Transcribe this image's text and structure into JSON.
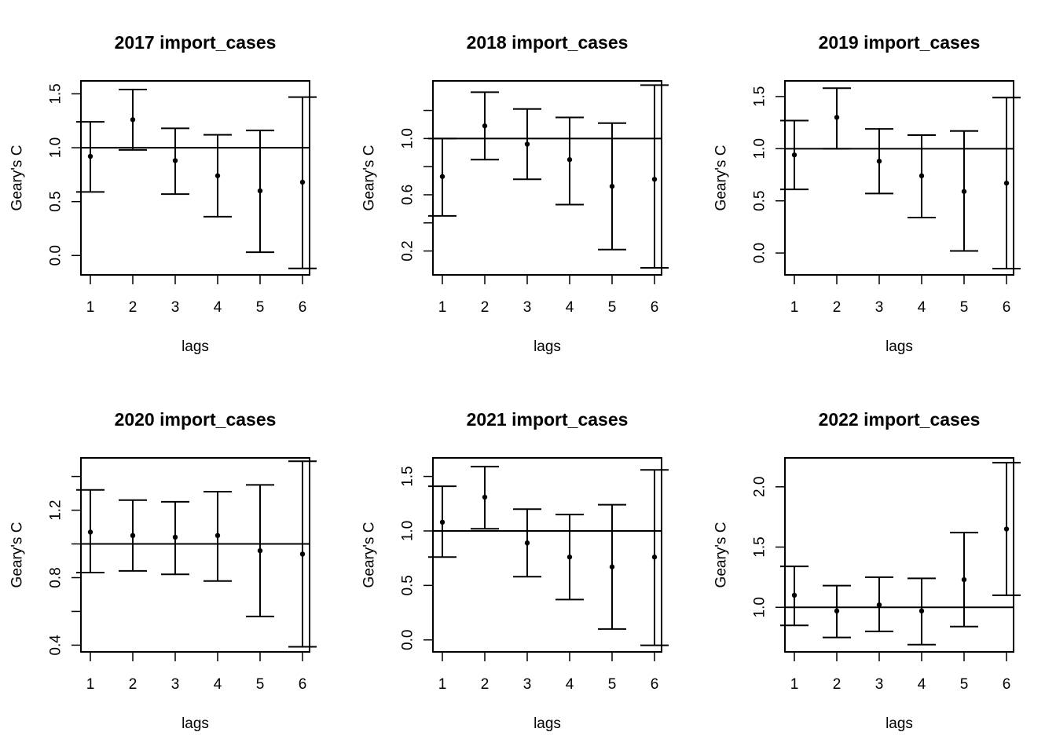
{
  "chart_data": [
    {
      "type": "errorbar",
      "title": "2017 import_cases",
      "xlabel": "lags",
      "ylabel": "Geary's C",
      "x": [
        1,
        2,
        3,
        4,
        5,
        6
      ],
      "y": [
        0.92,
        1.26,
        0.88,
        0.74,
        0.6,
        0.68
      ],
      "lower": [
        0.59,
        0.98,
        0.57,
        0.36,
        0.03,
        -0.12
      ],
      "upper": [
        1.24,
        1.54,
        1.18,
        1.12,
        1.16,
        1.47
      ],
      "reference_line": 1.0,
      "yticks": [
        0.0,
        0.5,
        1.0,
        1.5
      ],
      "ytick_labels": [
        "0.0",
        "0.5",
        "1.0",
        "1.5"
      ],
      "xticks": [
        "1",
        "2",
        "3",
        "4",
        "5",
        "6"
      ],
      "ylim": [
        -0.18,
        1.62
      ]
    },
    {
      "type": "errorbar",
      "title": "2018 import_cases",
      "xlabel": "lags",
      "ylabel": "Geary's C",
      "x": [
        1,
        2,
        3,
        4,
        5,
        6
      ],
      "y": [
        0.73,
        1.09,
        0.96,
        0.85,
        0.66,
        0.71
      ],
      "lower": [
        0.45,
        0.85,
        0.71,
        0.53,
        0.21,
        0.08
      ],
      "upper": [
        1.0,
        1.33,
        1.21,
        1.15,
        1.11,
        1.38
      ],
      "reference_line": 1.0,
      "yticks": [
        0.2,
        0.4,
        0.6,
        0.8,
        1.0,
        1.2
      ],
      "ytick_labels": [
        "0.2",
        "",
        "0.6",
        "",
        "1.0",
        ""
      ],
      "xticks": [
        "1",
        "2",
        "3",
        "4",
        "5",
        "6"
      ],
      "ylim": [
        0.03,
        1.41
      ]
    },
    {
      "type": "errorbar",
      "title": "2019 import_cases",
      "xlabel": "lags",
      "ylabel": "Geary's C",
      "x": [
        1,
        2,
        3,
        4,
        5,
        6
      ],
      "y": [
        0.94,
        1.3,
        0.88,
        0.74,
        0.59,
        0.67
      ],
      "lower": [
        0.61,
        1.0,
        0.57,
        0.34,
        0.02,
        -0.15
      ],
      "upper": [
        1.27,
        1.58,
        1.19,
        1.13,
        1.17,
        1.49
      ],
      "reference_line": 1.0,
      "yticks": [
        0.0,
        0.5,
        1.0,
        1.5
      ],
      "ytick_labels": [
        "0.0",
        "0.5",
        "1.0",
        "1.5"
      ],
      "xticks": [
        "1",
        "2",
        "3",
        "4",
        "5",
        "6"
      ],
      "ylim": [
        -0.21,
        1.65
      ]
    },
    {
      "type": "errorbar",
      "title": "2020 import_cases",
      "xlabel": "lags",
      "ylabel": "Geary's C",
      "x": [
        1,
        2,
        3,
        4,
        5,
        6
      ],
      "y": [
        1.07,
        1.05,
        1.04,
        1.05,
        0.96,
        0.94
      ],
      "lower": [
        0.83,
        0.84,
        0.82,
        0.78,
        0.57,
        0.39
      ],
      "upper": [
        1.32,
        1.26,
        1.25,
        1.31,
        1.35,
        1.49
      ],
      "reference_line": 1.0,
      "yticks": [
        0.4,
        0.6,
        0.8,
        1.0,
        1.2,
        1.4
      ],
      "ytick_labels": [
        "0.4",
        "",
        "0.8",
        "",
        "1.2",
        ""
      ],
      "xticks": [
        "1",
        "2",
        "3",
        "4",
        "5",
        "6"
      ],
      "ylim": [
        0.36,
        1.51
      ]
    },
    {
      "type": "errorbar",
      "title": "2021 import_cases",
      "xlabel": "lags",
      "ylabel": "Geary's C",
      "x": [
        1,
        2,
        3,
        4,
        5,
        6
      ],
      "y": [
        1.08,
        1.31,
        0.89,
        0.76,
        0.67,
        0.76
      ],
      "lower": [
        0.76,
        1.02,
        0.58,
        0.37,
        0.1,
        -0.05
      ],
      "upper": [
        1.41,
        1.59,
        1.2,
        1.15,
        1.24,
        1.56
      ],
      "reference_line": 1.0,
      "yticks": [
        0.0,
        0.5,
        1.0,
        1.5
      ],
      "ytick_labels": [
        "0.0",
        "0.5",
        "1.0",
        "1.5"
      ],
      "xticks": [
        "1",
        "2",
        "3",
        "4",
        "5",
        "6"
      ],
      "ylim": [
        -0.11,
        1.67
      ]
    },
    {
      "type": "errorbar",
      "title": "2022 import_cases",
      "xlabel": "lags",
      "ylabel": "Geary's C",
      "x": [
        1,
        2,
        3,
        4,
        5,
        6
      ],
      "y": [
        1.1,
        0.97,
        1.02,
        0.97,
        1.23,
        1.65
      ],
      "lower": [
        0.85,
        0.75,
        0.8,
        0.69,
        0.84,
        1.1
      ],
      "upper": [
        1.34,
        1.18,
        1.25,
        1.24,
        1.62,
        2.2
      ],
      "reference_line": 1.0,
      "yticks": [
        1.0,
        1.5,
        2.0
      ],
      "ytick_labels": [
        "1.0",
        "1.5",
        "2.0"
      ],
      "xticks": [
        "1",
        "2",
        "3",
        "4",
        "5",
        "6"
      ],
      "ylim": [
        0.63,
        2.24
      ]
    }
  ]
}
